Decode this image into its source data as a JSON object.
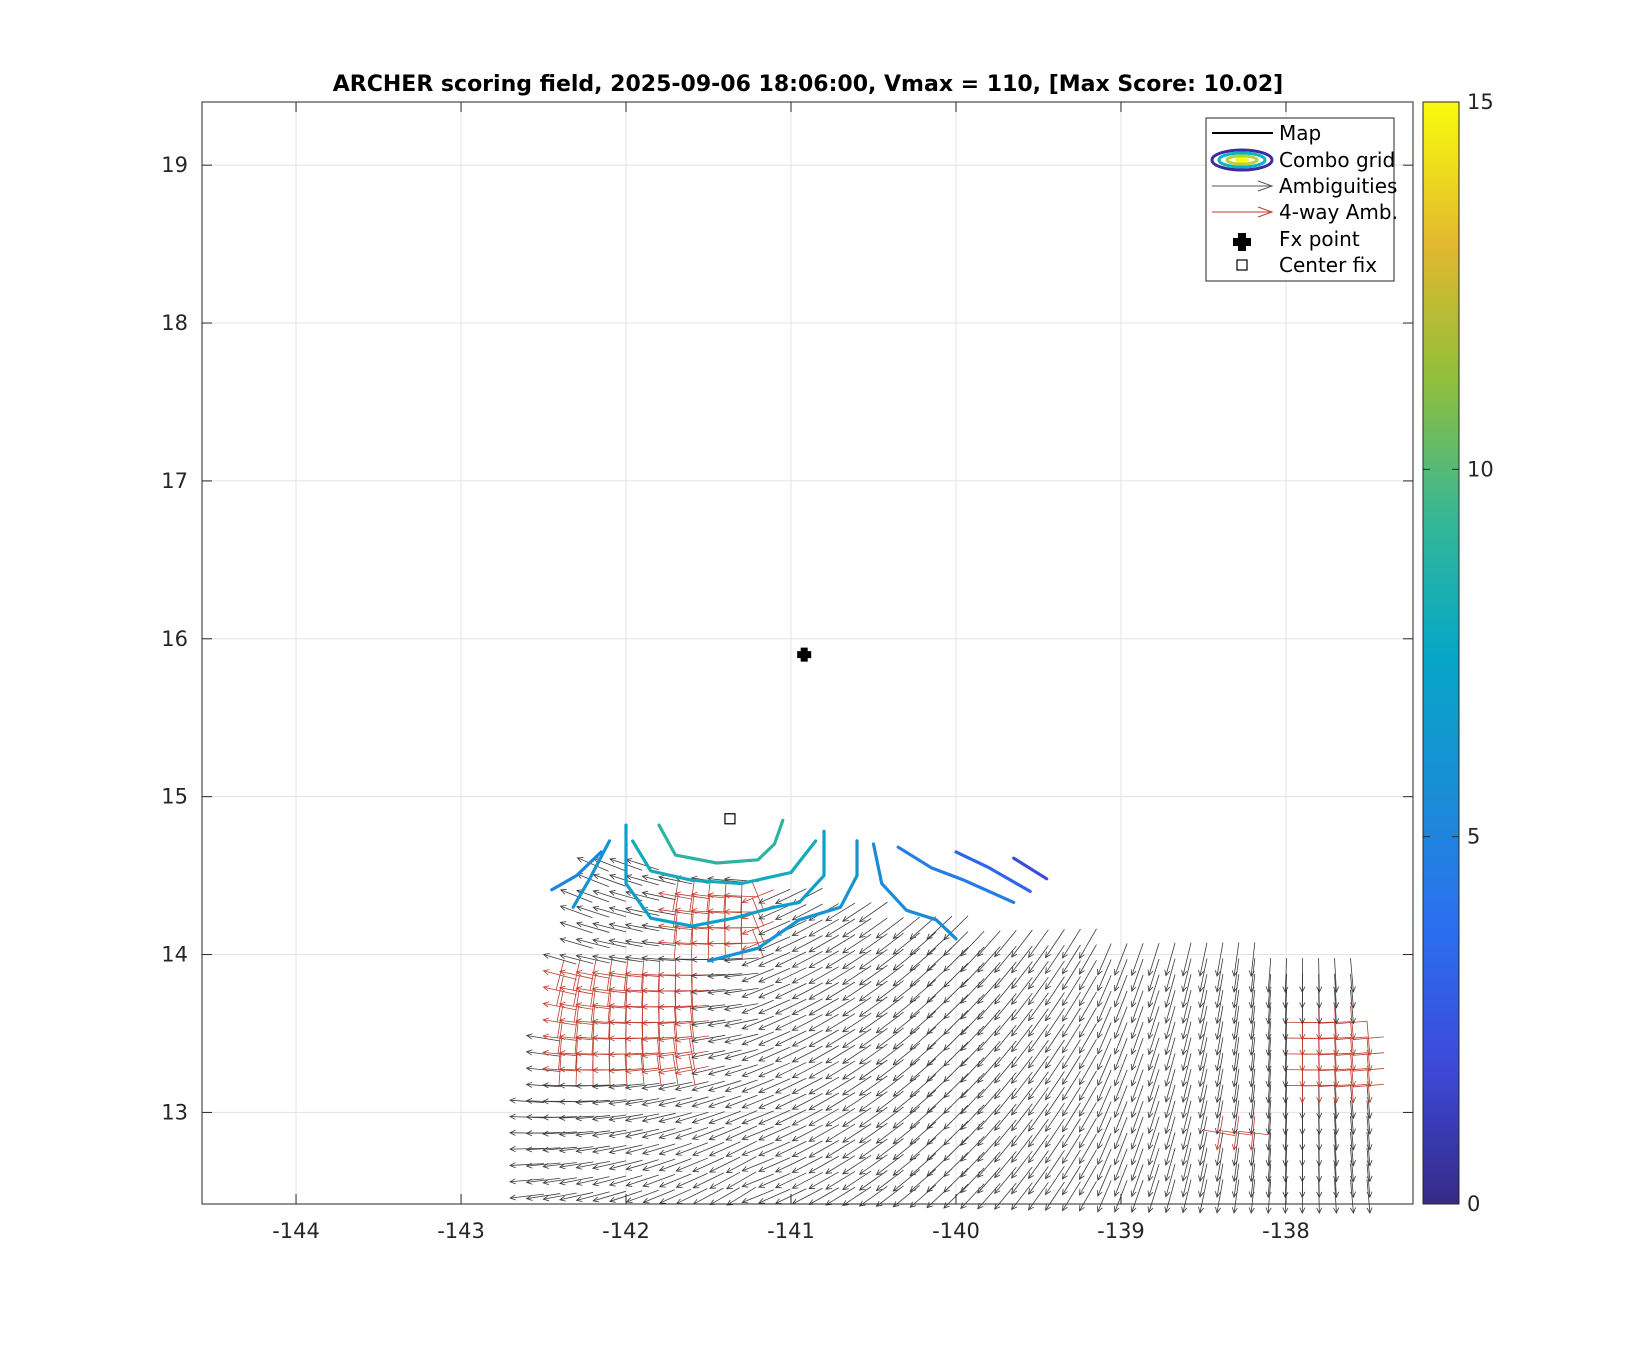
{
  "chart_data": {
    "type": "scatter",
    "title": "ARCHER scoring field, 2025-09-06 18:06:00, Vmax = 110, [Max Score: 10.02]",
    "xlabel": "",
    "ylabel": "",
    "xlim": [
      -144.57,
      -137.23
    ],
    "ylim": [
      12.42,
      19.4
    ],
    "x_ticks": [
      "-144",
      "-143",
      "-142",
      "-141",
      "-140",
      "-139",
      "-138"
    ],
    "y_ticks": [
      "13",
      "14",
      "15",
      "16",
      "17",
      "18",
      "19"
    ],
    "grid": true,
    "colorbar": {
      "min": 0,
      "max": 15,
      "ticks": [
        "0",
        "5",
        "10",
        "15"
      ],
      "colormap": "parula"
    },
    "legend": {
      "placement": "top-right",
      "entries": [
        "Map",
        "Combo grid",
        "Ambiguities",
        "4-way Amb.",
        "Fx point",
        "Center fix"
      ]
    },
    "fx_point": {
      "x": -140.92,
      "y": 15.9
    },
    "center_fix": {
      "x": -141.37,
      "y": 14.86
    },
    "contours": [
      {
        "level": 9.0,
        "points": [
          [
            -141.8,
            14.82
          ],
          [
            -141.7,
            14.63
          ],
          [
            -141.45,
            14.58
          ],
          [
            -141.2,
            14.6
          ],
          [
            -141.1,
            14.7
          ],
          [
            -141.05,
            14.85
          ]
        ]
      },
      {
        "level": 8.0,
        "points": [
          [
            -141.96,
            14.72
          ],
          [
            -141.85,
            14.53
          ],
          [
            -141.6,
            14.47
          ],
          [
            -141.3,
            14.45
          ],
          [
            -141.0,
            14.52
          ],
          [
            -140.85,
            14.72
          ]
        ]
      },
      {
        "level": 7.0,
        "points": [
          [
            -142.0,
            14.82
          ],
          [
            -142.0,
            14.45
          ],
          [
            -141.85,
            14.23
          ],
          [
            -141.6,
            14.18
          ],
          [
            -141.35,
            14.23
          ],
          [
            -141.1,
            14.3
          ],
          [
            -140.95,
            14.33
          ],
          [
            -140.8,
            14.5
          ],
          [
            -140.8,
            14.78
          ]
        ]
      },
      {
        "level": 6.0,
        "points": [
          [
            -142.1,
            14.72
          ],
          [
            -142.22,
            14.48
          ],
          [
            -142.32,
            14.3
          ]
        ]
      },
      {
        "level": 6.0,
        "points": [
          [
            -141.5,
            13.96
          ],
          [
            -141.2,
            14.04
          ],
          [
            -140.95,
            14.22
          ],
          [
            -140.7,
            14.3
          ],
          [
            -140.6,
            14.5
          ],
          [
            -140.6,
            14.72
          ]
        ]
      },
      {
        "level": 5.5,
        "points": [
          [
            -140.5,
            14.7
          ],
          [
            -140.45,
            14.45
          ],
          [
            -140.3,
            14.28
          ],
          [
            -140.12,
            14.22
          ],
          [
            -140.0,
            14.1
          ]
        ]
      },
      {
        "level": 5.0,
        "points": [
          [
            -142.15,
            14.65
          ],
          [
            -142.3,
            14.5
          ],
          [
            -142.45,
            14.41
          ]
        ]
      },
      {
        "level": 4.5,
        "points": [
          [
            -140.35,
            14.68
          ],
          [
            -140.15,
            14.55
          ],
          [
            -139.95,
            14.47
          ],
          [
            -139.65,
            14.33
          ]
        ]
      },
      {
        "level": 3.2,
        "points": [
          [
            -140.0,
            14.65
          ],
          [
            -139.8,
            14.55
          ],
          [
            -139.55,
            14.4
          ]
        ]
      },
      {
        "level": 2.0,
        "points": [
          [
            -139.65,
            14.61
          ],
          [
            -139.45,
            14.48
          ]
        ]
      }
    ],
    "wind_field": {
      "grid_x_start": -142.6,
      "grid_x_end": -137.45,
      "grid_x_step": 0.1,
      "grid_y_start": 12.47,
      "grid_y_end": 14.65,
      "grid_y_step": 0.1,
      "swath_edge": [
        [
          -142.3,
          14.6
        ],
        [
          -141.5,
          14.55
        ],
        [
          -140.3,
          14.22
        ],
        [
          -139.0,
          14.05
        ],
        [
          -137.5,
          13.9
        ]
      ],
      "red_patches": [
        {
          "x_min": -142.45,
          "x_max": -141.6,
          "y_min": 13.2,
          "y_max": 13.95
        },
        {
          "x_min": -141.75,
          "x_max": -141.2,
          "y_min": 14.0,
          "y_max": 14.45
        },
        {
          "x_min": -138.0,
          "x_max": -137.5,
          "y_min": 13.1,
          "y_max": 13.65
        },
        {
          "x_min": -138.45,
          "x_max": -138.15,
          "y_min": 12.8,
          "y_max": 12.95
        }
      ]
    }
  }
}
